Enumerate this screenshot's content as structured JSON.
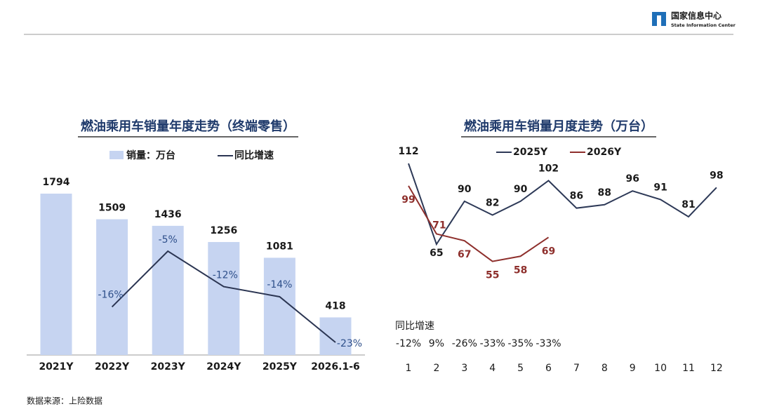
{
  "header": {
    "logo_cn": "国家信息中心",
    "logo_en": "State Information Center"
  },
  "chart_data": [
    {
      "type": "bar",
      "title": "燃油乘用车销量年度走势（终端零售）",
      "categories": [
        "2021Y",
        "2022Y",
        "2023Y",
        "2024Y",
        "2025Y",
        "2026.1-6"
      ],
      "series": [
        {
          "name": "销量：万台",
          "color": "#c6d4f1",
          "values": [
            1794,
            1509,
            1436,
            1256,
            1081,
            418
          ]
        },
        {
          "name": "同比增速",
          "color": "#2b3552",
          "type": "line",
          "values": [
            null,
            -16,
            -5,
            -12,
            -14,
            -23
          ],
          "value_labels": [
            null,
            "-16%",
            "-5%",
            "-12%",
            "-14%",
            "-23%"
          ]
        }
      ]
    },
    {
      "type": "line",
      "title": "燃油乘用车销量月度走势（万台）",
      "categories": [
        "1",
        "2",
        "3",
        "4",
        "5",
        "6",
        "7",
        "8",
        "9",
        "10",
        "11",
        "12"
      ],
      "series": [
        {
          "name": "2025Y",
          "color": "#2d3957",
          "values": [
            112,
            65,
            90,
            82,
            90,
            102,
            86,
            88,
            96,
            91,
            81,
            98
          ]
        },
        {
          "name": "2026Y",
          "color": "#8e2f2c",
          "values": [
            99,
            71,
            67,
            55,
            58,
            69,
            null,
            null,
            null,
            null,
            null,
            null
          ]
        }
      ],
      "table": {
        "label": "同比增速",
        "values": [
          -12,
          9,
          -26,
          -33,
          -35,
          -33
        ],
        "value_labels": [
          "-12%",
          "9%",
          "-26%",
          "-33%",
          "-35%",
          "-33%"
        ]
      }
    }
  ],
  "source": "数据来源：上险数据"
}
